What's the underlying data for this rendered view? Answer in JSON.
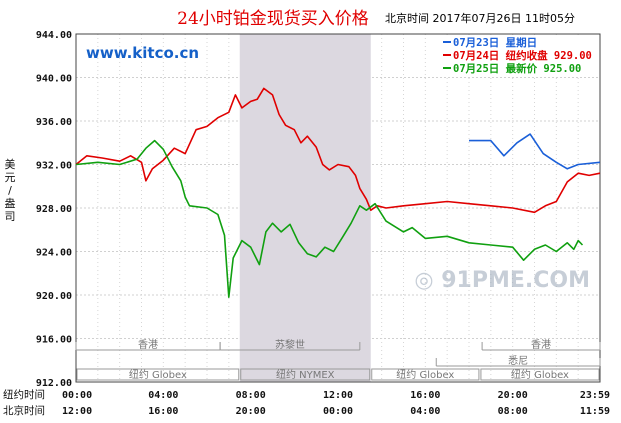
{
  "chart_data": {
    "type": "line",
    "title": "24小时铂金现货买入价格",
    "subtitle": "北京时间  2017年07月26日 11时05分",
    "ylabel": "美元/盎司",
    "ylim": [
      912,
      944
    ],
    "yticks": [
      "944.00",
      "940.00",
      "936.00",
      "932.00",
      "928.00",
      "924.00",
      "920.00",
      "916.00",
      "912.00"
    ],
    "xaxis_rows": [
      {
        "label": "纽约时间",
        "ticks": [
          "00:00",
          "04:00",
          "08:00",
          "12:00",
          "16:00",
          "20:00",
          "23:59"
        ]
      },
      {
        "label": "北京时间",
        "ticks": [
          "12:00",
          "16:00",
          "20:00",
          "00:00",
          "04:00",
          "08:00",
          "11:59"
        ]
      }
    ],
    "x_hours": [
      0,
      4,
      8,
      12,
      16,
      20,
      24
    ],
    "legend_position": "top-right",
    "legend": [
      {
        "text": "07月23日    星期日",
        "color": "#1a5fd8"
      },
      {
        "text": "07月24日  纽约收盘 929.00",
        "color": "#e00000"
      },
      {
        "text": "07月25日    最新价 925.00",
        "color": "#10a010"
      }
    ],
    "shaded_region_hours": [
      7.5,
      13.5
    ],
    "sessions": {
      "row1": [
        "香港",
        "苏黎世",
        "香港",
        "悉尼"
      ],
      "row2": [
        "纽约 Globex",
        "纽约 NYMEX",
        "纽约 Globex",
        "纽约 Globex"
      ]
    },
    "watermark": "www.kitco.cn",
    "series": [
      {
        "color": "#e00000",
        "points": [
          [
            0,
            932.0
          ],
          [
            0.5,
            932.8
          ],
          [
            1.2,
            932.6
          ],
          [
            2.0,
            932.3
          ],
          [
            2.5,
            932.8
          ],
          [
            3.0,
            932.2
          ],
          [
            3.2,
            930.5
          ],
          [
            3.5,
            931.6
          ],
          [
            4.0,
            932.4
          ],
          [
            4.5,
            933.5
          ],
          [
            5.0,
            933.0
          ],
          [
            5.5,
            935.2
          ],
          [
            6.0,
            935.5
          ],
          [
            6.5,
            936.3
          ],
          [
            7.0,
            936.8
          ],
          [
            7.3,
            938.4
          ],
          [
            7.6,
            937.2
          ],
          [
            8.0,
            937.8
          ],
          [
            8.3,
            938.0
          ],
          [
            8.6,
            939.0
          ],
          [
            9.0,
            938.4
          ],
          [
            9.3,
            936.6
          ],
          [
            9.6,
            935.6
          ],
          [
            10.0,
            935.2
          ],
          [
            10.3,
            934.0
          ],
          [
            10.6,
            934.6
          ],
          [
            11.0,
            933.6
          ],
          [
            11.3,
            932.0
          ],
          [
            11.6,
            931.5
          ],
          [
            12.0,
            932.0
          ],
          [
            12.5,
            931.8
          ],
          [
            12.8,
            931.0
          ],
          [
            13.0,
            929.8
          ],
          [
            13.3,
            928.8
          ],
          [
            13.5,
            927.8
          ],
          [
            13.8,
            928.2
          ],
          [
            14.2,
            928.0
          ],
          [
            15.0,
            928.2
          ],
          [
            16.0,
            928.4
          ],
          [
            17.0,
            928.6
          ],
          [
            18.0,
            928.4
          ],
          [
            19.0,
            928.2
          ],
          [
            20.0,
            928.0
          ],
          [
            21.0,
            927.6
          ],
          [
            21.5,
            928.2
          ],
          [
            22.0,
            928.6
          ],
          [
            22.5,
            930.4
          ],
          [
            23.0,
            931.2
          ],
          [
            23.5,
            931.0
          ],
          [
            24.0,
            931.2
          ]
        ]
      },
      {
        "color": "#10a010",
        "points": [
          [
            0,
            932.0
          ],
          [
            1.0,
            932.2
          ],
          [
            2.0,
            932.0
          ],
          [
            2.8,
            932.5
          ],
          [
            3.2,
            933.5
          ],
          [
            3.6,
            934.2
          ],
          [
            4.0,
            933.4
          ],
          [
            4.4,
            931.8
          ],
          [
            4.8,
            930.5
          ],
          [
            5.0,
            929.0
          ],
          [
            5.2,
            928.2
          ],
          [
            6.0,
            928.0
          ],
          [
            6.5,
            927.4
          ],
          [
            6.8,
            925.5
          ],
          [
            7.0,
            919.8
          ],
          [
            7.2,
            923.4
          ],
          [
            7.6,
            925.0
          ],
          [
            8.0,
            924.4
          ],
          [
            8.4,
            922.8
          ],
          [
            8.7,
            925.8
          ],
          [
            9.0,
            926.6
          ],
          [
            9.4,
            925.8
          ],
          [
            9.8,
            926.5
          ],
          [
            10.2,
            924.8
          ],
          [
            10.6,
            923.8
          ],
          [
            11.0,
            923.5
          ],
          [
            11.4,
            924.4
          ],
          [
            11.8,
            924.0
          ],
          [
            12.2,
            925.3
          ],
          [
            12.6,
            926.6
          ],
          [
            13.0,
            928.2
          ],
          [
            13.3,
            927.8
          ],
          [
            13.7,
            928.4
          ],
          [
            14.2,
            926.8
          ],
          [
            15.0,
            925.8
          ],
          [
            15.4,
            926.2
          ],
          [
            16.0,
            925.2
          ],
          [
            17.0,
            925.4
          ],
          [
            18.0,
            924.8
          ],
          [
            19.0,
            924.6
          ],
          [
            20.0,
            924.4
          ],
          [
            20.5,
            923.2
          ],
          [
            21.0,
            924.2
          ],
          [
            21.5,
            924.6
          ],
          [
            22.0,
            924.0
          ],
          [
            22.5,
            924.8
          ],
          [
            22.8,
            924.2
          ],
          [
            23.0,
            925.0
          ],
          [
            23.2,
            924.6
          ]
        ]
      },
      {
        "color": "#1a5fd8",
        "points": [
          [
            18.0,
            934.2
          ],
          [
            19.0,
            934.2
          ],
          [
            19.6,
            932.8
          ],
          [
            20.2,
            934.0
          ],
          [
            20.8,
            934.8
          ],
          [
            21.4,
            933.0
          ],
          [
            22.0,
            932.2
          ],
          [
            22.5,
            931.6
          ],
          [
            23.0,
            932.0
          ],
          [
            24.0,
            932.2
          ]
        ]
      }
    ]
  }
}
